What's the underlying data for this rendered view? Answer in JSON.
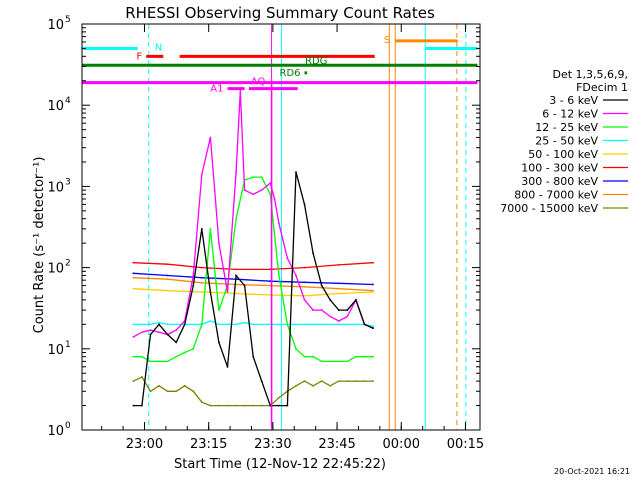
{
  "chart_data": {
    "type": "line",
    "title": "RHESSI Observing Summary Count Rates",
    "xlabel": "Start Time (12-Nov-12 22:45:22)",
    "ylabel": "Count Rate (s⁻¹ detector⁻¹)",
    "x_unit": "minutes after 22:45:22",
    "xlim": [
      0,
      93
    ],
    "ylim": [
      1,
      100000
    ],
    "yscale": "log",
    "x_ticks": [
      {
        "x": 14.6,
        "label": "23:00"
      },
      {
        "x": 29.6,
        "label": "23:15"
      },
      {
        "x": 44.6,
        "label": "23:30"
      },
      {
        "x": 59.6,
        "label": "23:45"
      },
      {
        "x": 74.6,
        "label": "00:00"
      },
      {
        "x": 89.6,
        "label": "00:15"
      }
    ],
    "y_ticks": [
      {
        "y": 1,
        "base": "10",
        "exp": "0"
      },
      {
        "y": 10,
        "base": "10",
        "exp": "1"
      },
      {
        "y": 100,
        "base": "10",
        "exp": "2"
      },
      {
        "y": 1000,
        "base": "10",
        "exp": "3"
      },
      {
        "y": 10000,
        "base": "10",
        "exp": "4"
      },
      {
        "y": 100000,
        "base": "10",
        "exp": "5"
      }
    ],
    "legend_title": [
      "Det 1,3,5,6,9,",
      "FDecim 1"
    ],
    "legend_position": "right",
    "series": [
      {
        "name": "3 - 6 keV",
        "color": "#000000",
        "x": [
          12,
          14,
          16,
          18,
          20,
          22,
          24,
          26,
          28,
          30,
          32,
          34,
          36,
          38,
          40,
          42,
          44,
          46,
          48,
          50,
          52,
          54,
          56,
          58,
          60,
          62,
          64,
          66,
          68
        ],
        "y": [
          2,
          2,
          15,
          20,
          15,
          12,
          20,
          60,
          300,
          50,
          12,
          6,
          80,
          60,
          8,
          4,
          2,
          2,
          2,
          1500,
          600,
          150,
          60,
          40,
          30,
          30,
          40,
          20,
          18
        ]
      },
      {
        "name": "6 - 12 keV",
        "color": "#ff00ff",
        "x": [
          12,
          14,
          16,
          18,
          20,
          22,
          24,
          26,
          28,
          30,
          31,
          32,
          34,
          36,
          37,
          38,
          40,
          42,
          44,
          45,
          46,
          48,
          50,
          52,
          54,
          56,
          58,
          60,
          62,
          64,
          66,
          68
        ],
        "y": [
          14,
          16,
          17,
          16,
          15,
          17,
          22,
          80,
          1400,
          4000,
          900,
          200,
          50,
          1500,
          15000,
          900,
          800,
          900,
          1100,
          700,
          350,
          130,
          80,
          40,
          30,
          30,
          25,
          22,
          25,
          40,
          20,
          18
        ]
      },
      {
        "name": "12 - 25 keV",
        "color": "#00ff00",
        "x": [
          12,
          14,
          16,
          18,
          20,
          22,
          24,
          26,
          28,
          30,
          32,
          34,
          36,
          38,
          40,
          42,
          44,
          46,
          48,
          50,
          52,
          54,
          56,
          58,
          60,
          62,
          64,
          66,
          68
        ],
        "y": [
          8,
          8,
          7,
          7,
          7,
          8,
          9,
          10,
          20,
          300,
          30,
          60,
          400,
          1200,
          1300,
          1300,
          800,
          80,
          20,
          10,
          8,
          8,
          7,
          7,
          7,
          7,
          8,
          8,
          8
        ]
      },
      {
        "name": "25 - 50 keV",
        "color": "#00ffff",
        "x": [
          12,
          14,
          16,
          18,
          20,
          22,
          24,
          26,
          28,
          30,
          32,
          34,
          36,
          38,
          40,
          42,
          44,
          46,
          48,
          50,
          52,
          54,
          56,
          58,
          60,
          62,
          64,
          66,
          68
        ],
        "y": [
          20,
          20,
          20,
          21,
          20,
          20,
          20,
          20,
          20,
          22,
          20,
          20,
          20,
          21,
          20,
          20,
          20,
          20,
          20,
          20,
          20,
          20,
          20,
          20,
          20,
          20,
          20,
          20,
          19
        ]
      },
      {
        "name": "50 - 100 keV",
        "color": "#ffcc00",
        "x": [
          12,
          20,
          28,
          36,
          44,
          52,
          60,
          68
        ],
        "y": [
          55,
          52,
          50,
          48,
          46,
          45,
          48,
          50
        ]
      },
      {
        "name": "100 - 300 keV",
        "color": "#ff0000",
        "x": [
          12,
          20,
          28,
          36,
          44,
          52,
          60,
          68
        ],
        "y": [
          115,
          110,
          100,
          95,
          95,
          100,
          108,
          115
        ]
      },
      {
        "name": "300 - 800 keV",
        "color": "#0000ff",
        "x": [
          12,
          20,
          28,
          36,
          44,
          52,
          60,
          68
        ],
        "y": [
          85,
          80,
          75,
          72,
          68,
          66,
          64,
          62
        ]
      },
      {
        "name": "800 - 7000 keV",
        "color": "#ff8800",
        "x": [
          12,
          20,
          28,
          36,
          44,
          52,
          60,
          68
        ],
        "y": [
          75,
          72,
          65,
          62,
          60,
          58,
          55,
          52
        ]
      },
      {
        "name": "7000 - 15000 keV",
        "color": "#808000",
        "x": [
          12,
          14,
          16,
          18,
          20,
          22,
          24,
          26,
          28,
          30,
          32,
          34,
          36,
          38,
          40,
          42,
          44,
          46,
          48,
          50,
          52,
          54,
          56,
          58,
          60,
          62,
          64,
          66,
          68
        ],
        "y": [
          4,
          4.5,
          3,
          3.5,
          3,
          3,
          3.5,
          3,
          2.2,
          2,
          2,
          2,
          2,
          2,
          2,
          2,
          2,
          2.5,
          3,
          3.5,
          4,
          3.5,
          4,
          3.5,
          4,
          4,
          4,
          4,
          4
        ]
      }
    ],
    "flag_bars": [
      {
        "label": "",
        "color": "#00ffff",
        "y": 50000,
        "x0": 0,
        "x1": 13
      },
      {
        "label": "N",
        "color": "#00ffff",
        "y": 50000,
        "x0": 80.2,
        "x1": 92.4
      },
      {
        "label": "S",
        "color": "#ff8800",
        "y": 62000,
        "x0": 73.2,
        "x1": 87.8
      },
      {
        "label": "F",
        "color": "#ff0000",
        "y": 40000,
        "x0": 15,
        "x1": 19
      },
      {
        "label": "",
        "color": "#ff0000",
        "y": 40000,
        "x0": 22.8,
        "x1": 68.4
      },
      {
        "label": "",
        "color": "#008000",
        "y": 31000,
        "x0": 0,
        "x1": 92.4
      },
      {
        "label": "",
        "color": "#ff00ff",
        "y": 19000,
        "x0": 0,
        "x1": 92.4
      },
      {
        "label": "A1",
        "color": "#ff00ff",
        "y": 16000,
        "x0": 34,
        "x1": 38
      },
      {
        "label": "AQ",
        "color": "#ff00ff",
        "y": 16000,
        "x0": 39,
        "x1": 50.4
      },
      {
        "label": "RD6",
        "color": "#008000",
        "y": 25000,
        "x0": 52,
        "x1": 52.6
      },
      {
        "label": "RDG",
        "color": "#008000",
        "y": 36000,
        "x0": 0,
        "x1": 0
      }
    ],
    "vertical_lines": [
      {
        "x": 15.6,
        "color": "#00ffff",
        "style": "dashed"
      },
      {
        "x": 80.2,
        "color": "#00ffff",
        "style": "solid"
      },
      {
        "x": 89.7,
        "color": "#00ffff",
        "style": "dashed"
      },
      {
        "x": 73.2,
        "color": "#ff8800",
        "style": "solid"
      },
      {
        "x": 87.6,
        "color": "#ff8800",
        "style": "dashed"
      },
      {
        "x": 71.8,
        "color": "#ff8800",
        "style": "solid"
      },
      {
        "x": 46.6,
        "color": "#00ffff",
        "style": "solid"
      },
      {
        "x": 44.3,
        "color": "#ff00ff",
        "style": "solid"
      }
    ],
    "footer_date": "20-Oct-2021 16:21"
  }
}
